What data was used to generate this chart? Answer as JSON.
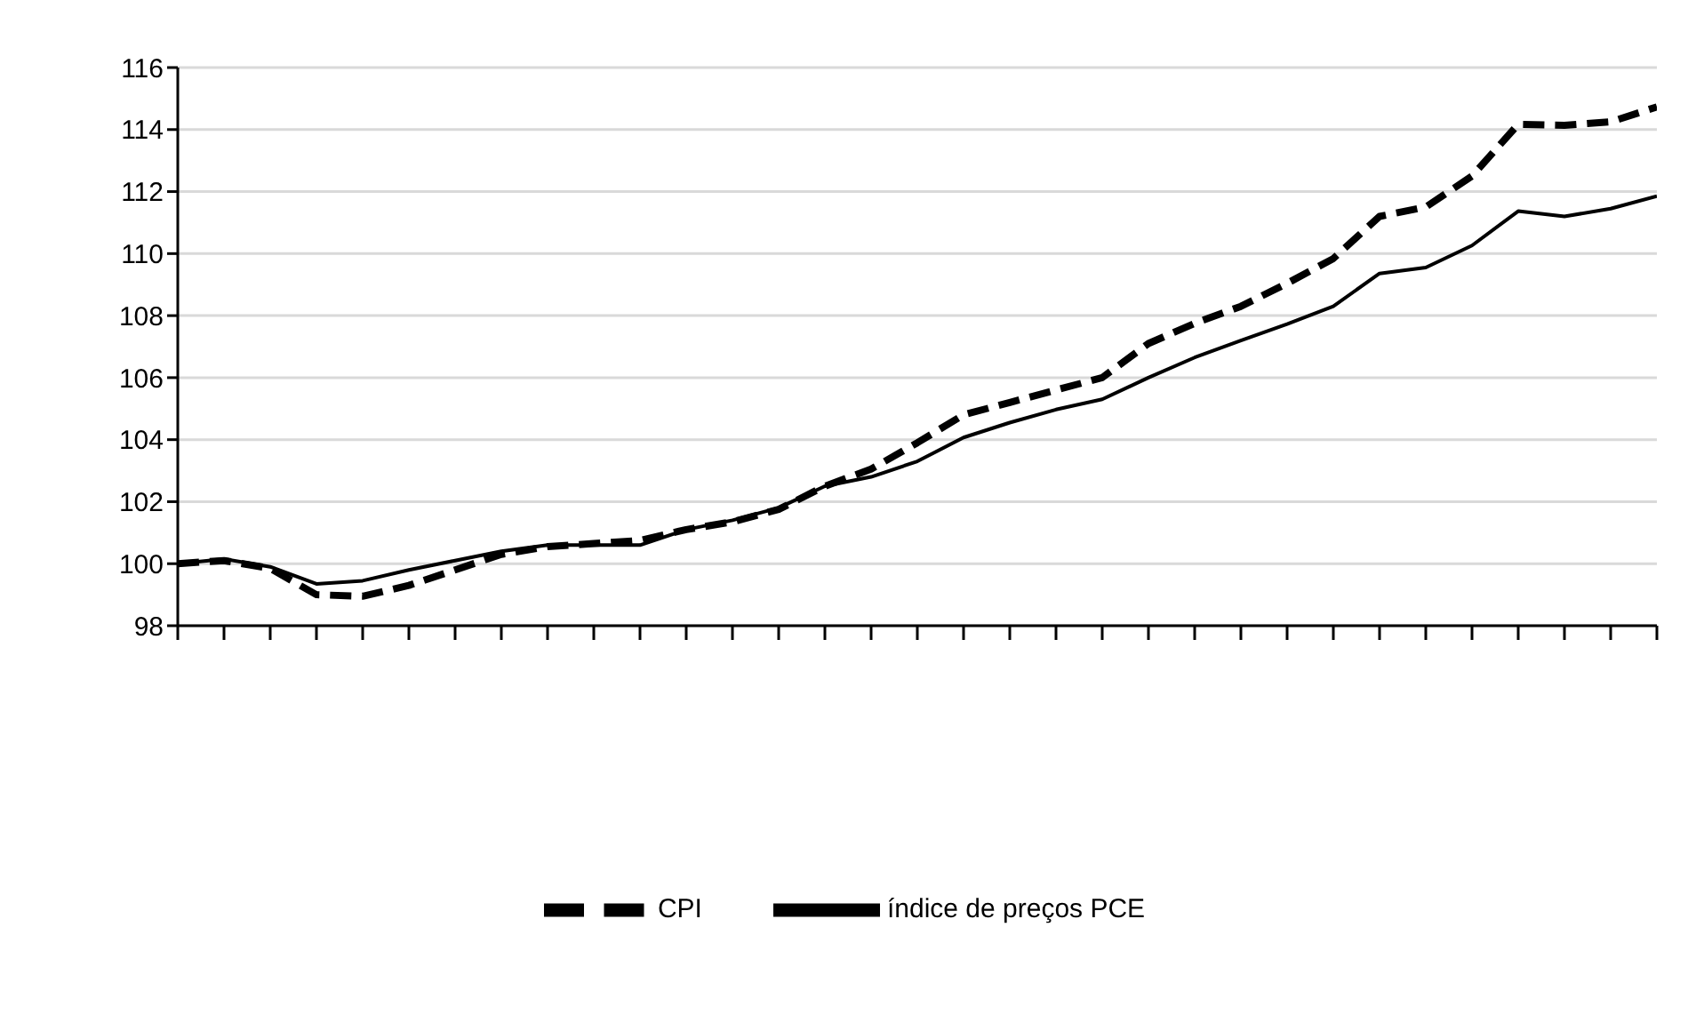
{
  "chart_data": {
    "type": "line",
    "categories": [
      null,
      null,
      null,
      null,
      null,
      null,
      null,
      null,
      null,
      null,
      null,
      null,
      null,
      null,
      null,
      null,
      null,
      null,
      null,
      null,
      null,
      null,
      null,
      null,
      null,
      null,
      null,
      null,
      null,
      null,
      null,
      null,
      null
    ],
    "series": [
      {
        "name": "índice de preços PCE",
        "color": "#000000",
        "line_style": "solid",
        "values": [
          100.0,
          100.15,
          99.9,
          99.35,
          99.45,
          99.8,
          100.1,
          100.4,
          100.6,
          100.6,
          100.6,
          101.1,
          101.4,
          101.8,
          102.5,
          102.8,
          103.3,
          104.07,
          104.55,
          104.97,
          105.3,
          106.0,
          106.65,
          107.2,
          107.73,
          108.3,
          109.36,
          109.55,
          110.26,
          111.37,
          111.2,
          111.45,
          111.85
        ]
      },
      {
        "name": "CPI",
        "color": "#000000",
        "line_style": "dashed",
        "values": [
          100.0,
          100.1,
          99.85,
          99.0,
          98.95,
          99.3,
          99.8,
          100.3,
          100.55,
          100.65,
          100.75,
          101.1,
          101.35,
          101.75,
          102.5,
          103.05,
          103.9,
          104.8,
          105.2,
          105.6,
          106.0,
          107.1,
          107.75,
          108.3,
          109.04,
          109.84,
          111.2,
          111.5,
          112.5,
          114.17,
          114.14,
          114.25,
          114.73
        ]
      }
    ],
    "ylim": [
      98,
      116
    ],
    "yticks": [
      98,
      100,
      102,
      104,
      106,
      108,
      110,
      112,
      114,
      116
    ],
    "grid": "y",
    "legend": "bottom",
    "marker": "none"
  }
}
